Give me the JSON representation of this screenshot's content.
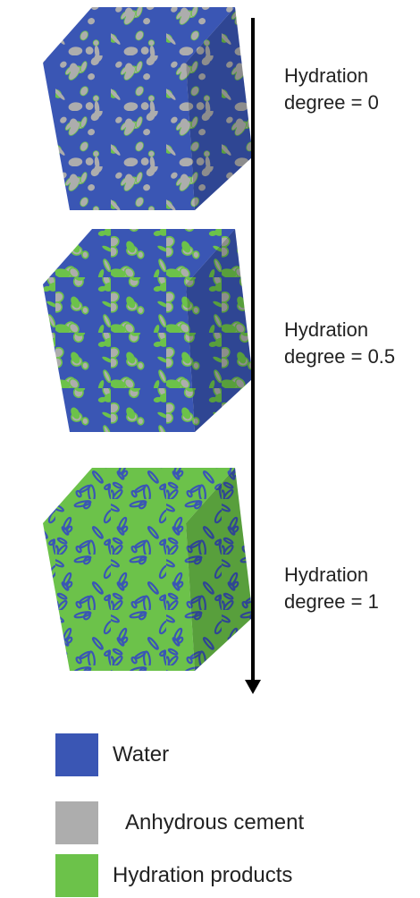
{
  "colors": {
    "water": "#3a56b4",
    "anhydrous_cement": "#adadad",
    "hydration_products": "#6cc24a",
    "arrow": "#000000",
    "text": "#222222"
  },
  "stages": [
    {
      "name": "stage-0",
      "label_line1": "Hydration",
      "label_line2": "degree = 0",
      "composition": {
        "water": 0.62,
        "anhydrous_cement": 0.34,
        "hydration_products": 0.04
      }
    },
    {
      "name": "stage-0-5",
      "label_line1": "Hydration",
      "label_line2": "degree = 0.5",
      "composition": {
        "water": 0.55,
        "anhydrous_cement": 0.2,
        "hydration_products": 0.25
      }
    },
    {
      "name": "stage-1",
      "label_line1": "Hydration",
      "label_line2": "degree = 1",
      "composition": {
        "water": 0.35,
        "anhydrous_cement": 0.0,
        "hydration_products": 0.65
      }
    }
  ],
  "legend": {
    "water": "Water",
    "anhydrous_cement": "Anhydrous cement",
    "hydration_products": "Hydration products"
  }
}
